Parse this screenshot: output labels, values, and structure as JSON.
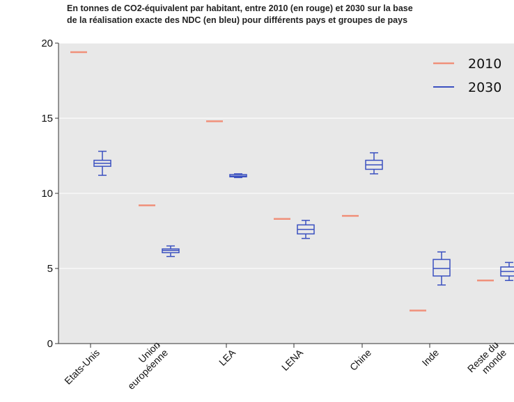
{
  "title": {
    "line1": "En tonnes de CO2-équivalent par habitant, entre 2010 (en rouge) et 2030 sur la base",
    "line2": "de la réalisation exacte des NDC (en bleu) pour différents pays et groupes de pays"
  },
  "chart_data": {
    "type": "box",
    "categories": [
      [
        "Etats-Unis"
      ],
      [
        "Union",
        "européenne"
      ],
      [
        "LEA"
      ],
      [
        "LENA"
      ],
      [
        "Chine"
      ],
      [
        "Inde"
      ],
      [
        "Reste du",
        "monde"
      ]
    ],
    "ylim": [
      0,
      20
    ],
    "yticks": [
      0,
      5,
      10,
      15,
      20
    ],
    "grid": true,
    "legend_position": "top-right",
    "colors": {
      "2010": "#f0907a",
      "2030": "#3a50c0",
      "background": "#e8e8e8",
      "grid": "#ffffff"
    },
    "series": [
      {
        "name": "2010",
        "type": "marker",
        "values": [
          19.4,
          9.2,
          14.8,
          8.3,
          8.5,
          2.2,
          4.2
        ]
      },
      {
        "name": "2030",
        "type": "box",
        "boxes": [
          {
            "whislo": 11.2,
            "q1": 11.8,
            "med": 12.0,
            "q3": 12.2,
            "whishi": 12.8
          },
          {
            "whislo": 5.8,
            "q1": 6.05,
            "med": 6.2,
            "q3": 6.3,
            "whishi": 6.5
          },
          {
            "whislo": 11.05,
            "q1": 11.1,
            "med": 11.15,
            "q3": 11.25,
            "whishi": 11.3
          },
          {
            "whislo": 7.0,
            "q1": 7.3,
            "med": 7.6,
            "q3": 7.9,
            "whishi": 8.2
          },
          {
            "whislo": 11.3,
            "q1": 11.6,
            "med": 11.9,
            "q3": 12.2,
            "whishi": 12.7
          },
          {
            "whislo": 3.9,
            "q1": 4.5,
            "med": 5.0,
            "q3": 5.6,
            "whishi": 6.1
          },
          {
            "whislo": 4.2,
            "q1": 4.5,
            "med": 4.8,
            "q3": 5.1,
            "whishi": 5.4
          }
        ]
      }
    ]
  }
}
